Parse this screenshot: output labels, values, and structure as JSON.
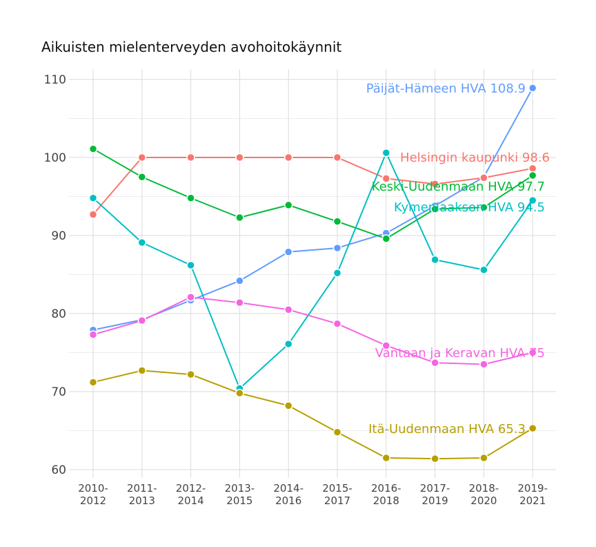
{
  "chart_data": {
    "type": "line",
    "title": "Aikuisten mielenterveyden avohoitokäynnit",
    "xlabel": "",
    "ylabel": "",
    "categories": [
      "2010-\n2012",
      "2011-\n2013",
      "2012-\n2014",
      "2013-\n2015",
      "2014-\n2016",
      "2015-\n2017",
      "2016-\n2018",
      "2017-\n2019",
      "2018-\n2020",
      "2019-\n2021"
    ],
    "ylim": [
      59,
      111
    ],
    "yticks": [
      60,
      70,
      80,
      90,
      100,
      110
    ],
    "grid": true,
    "legend": "direct labels at line ends",
    "series": [
      {
        "name": "Päijät-Hämeen HVA",
        "end_label": "Päijät-Hämeen HVA 108.9",
        "color": "#619CFF",
        "values": [
          77.9,
          79.2,
          81.7,
          84.2,
          87.9,
          88.4,
          90.3,
          93.8,
          97.5,
          108.9
        ]
      },
      {
        "name": "Helsingin kaupunki",
        "end_label": "Helsingin kaupunki 98.6",
        "color": "#F8766D",
        "values": [
          92.7,
          100,
          100,
          100,
          100,
          100,
          97.3,
          96.6,
          97.4,
          98.6
        ]
      },
      {
        "name": "Keski-Uudenmaan HVA",
        "end_label": "Keski-Uudenmaan HVA 97.7",
        "color": "#00BA38",
        "values": [
          101.1,
          97.5,
          94.8,
          92.3,
          93.9,
          91.8,
          89.6,
          93.4,
          93.6,
          97.7
        ]
      },
      {
        "name": "Kymenlaakson HVA",
        "end_label": "Kymenlaakson HVA 94.5",
        "color": "#00BFC4",
        "values": [
          94.8,
          89.1,
          86.2,
          70.4,
          76.1,
          85.2,
          100.6,
          86.9,
          85.6,
          94.5
        ]
      },
      {
        "name": "Vantaan ja Keravan HVA",
        "end_label": "Vantaan ja Keravan HVA 75",
        "color": "#F564E3",
        "values": [
          77.3,
          79.1,
          82.1,
          81.4,
          80.5,
          78.7,
          75.9,
          73.7,
          73.5,
          75.0
        ]
      },
      {
        "name": "Itä-Uudenmaan HVA",
        "end_label": "Itä-Uudenmaan HVA 65.3",
        "color": "#B79F00",
        "values": [
          71.2,
          72.7,
          72.2,
          69.8,
          68.2,
          64.8,
          61.5,
          61.4,
          61.5,
          65.3
        ]
      }
    ]
  }
}
